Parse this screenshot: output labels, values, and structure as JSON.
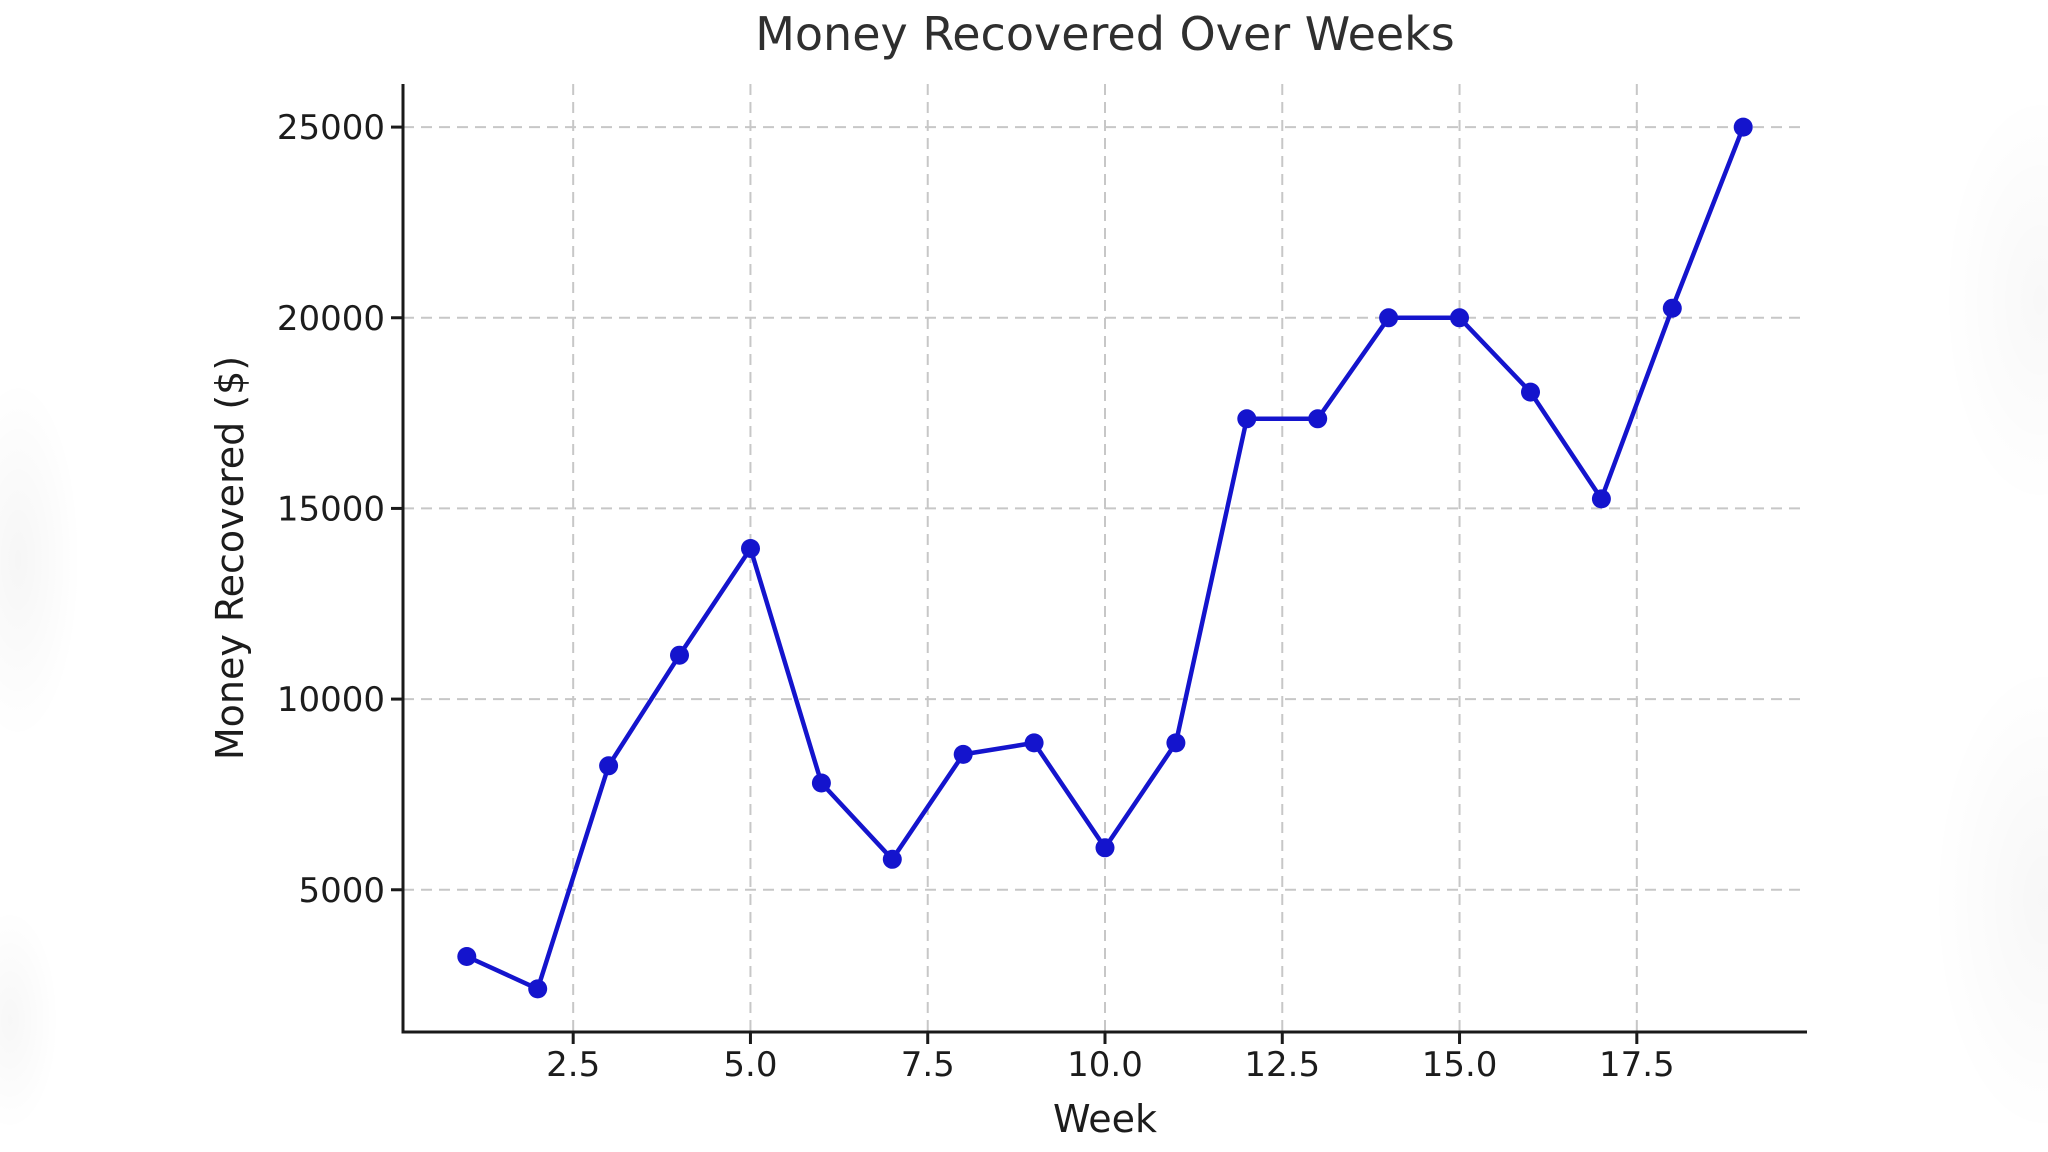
{
  "figure": {
    "background_color": "#ffffff",
    "title_color": "#2f2f2f",
    "tick_label_color": "#1c1c1c",
    "spine_color": "#1a1a1a",
    "grid_color": "#c7c7c7"
  },
  "chart_data": {
    "type": "line",
    "title": "Money Recovered Over Weeks",
    "xlabel": "Week",
    "ylabel": "Money Recovered ($)",
    "series": [
      {
        "name": "money-recovered",
        "x": [
          1,
          2,
          3,
          4,
          5,
          6,
          7,
          8,
          9,
          10,
          11,
          12,
          13,
          14,
          15,
          16,
          17,
          18,
          19
        ],
        "y": [
          3250,
          2400,
          8250,
          11150,
          13950,
          7800,
          5800,
          8550,
          8850,
          6100,
          8850,
          17350,
          17350,
          20000,
          20000,
          18050,
          15250,
          20250,
          25000
        ],
        "line_color": "#1414cd",
        "marker": "circle",
        "marker_color": "#1414cd"
      }
    ],
    "xlim": [
      0.1,
      19.9
    ],
    "ylim": [
      1270,
      26130
    ],
    "xticks": [
      2.5,
      5.0,
      7.5,
      10.0,
      12.5,
      15.0,
      17.5
    ],
    "xtick_labels": [
      "2.5",
      "5.0",
      "7.5",
      "10.0",
      "12.5",
      "15.0",
      "17.5"
    ],
    "yticks": [
      5000,
      10000,
      15000,
      20000,
      25000
    ],
    "ytick_labels": [
      "5000",
      "10000",
      "15000",
      "20000",
      "25000"
    ],
    "grid": true,
    "grid_style": "dashed",
    "legend": null
  }
}
